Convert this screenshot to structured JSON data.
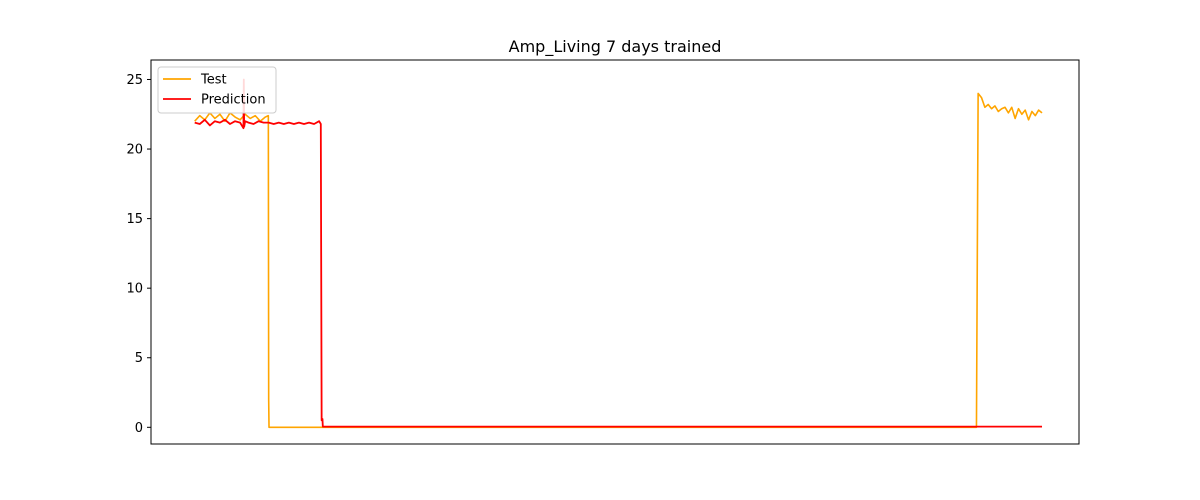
{
  "chart_data": {
    "type": "line",
    "title": "Amp_Living 7 days trained",
    "xlabel": "",
    "ylabel": "",
    "ylim": [
      -1.2,
      26.4
    ],
    "xlim": [
      -2.6,
      52.6
    ],
    "xticks_shown": false,
    "yticks": [
      0,
      5,
      10,
      15,
      20,
      25
    ],
    "ytick_labels": [
      "0",
      "5",
      "10",
      "15",
      "20",
      "25"
    ],
    "grid": false,
    "legend": {
      "position": "top-left",
      "entries": [
        "Test",
        "Prediction"
      ]
    },
    "series": [
      {
        "name": "Test",
        "color": "#FFA500",
        "x": [
          0,
          0.3,
          0.6,
          0.9,
          1.2,
          1.5,
          1.8,
          2.1,
          2.4,
          2.7,
          3.0,
          3.3,
          3.6,
          3.9,
          4.2,
          4.38,
          4.4,
          4.42,
          6,
          10,
          20,
          30,
          40,
          44,
          46.5,
          46.55,
          46.6,
          46.8,
          47.0,
          47.2,
          47.4,
          47.6,
          47.8,
          48.0,
          48.2,
          48.4,
          48.6,
          48.8,
          49.0,
          49.2,
          49.4,
          49.6,
          49.8,
          50.0,
          50.2,
          50.4
        ],
        "y": [
          22.0,
          22.4,
          22.1,
          22.6,
          22.2,
          22.5,
          22.0,
          22.6,
          22.3,
          22.1,
          22.5,
          22.2,
          22.4,
          22.0,
          22.3,
          22.4,
          2.0,
          0,
          0,
          0,
          0,
          0,
          0,
          0,
          0,
          12.0,
          24.0,
          23.7,
          23.0,
          23.2,
          22.9,
          23.1,
          22.7,
          22.9,
          23.0,
          22.6,
          23.0,
          22.2,
          22.9,
          22.5,
          22.8,
          22.1,
          22.7,
          22.4,
          22.8,
          22.6
        ]
      },
      {
        "name": "Prediction",
        "color": "#FF0000",
        "x": [
          0,
          0.3,
          0.6,
          0.9,
          1.2,
          1.5,
          1.8,
          2.1,
          2.4,
          2.7,
          2.9,
          2.92,
          2.94,
          3.0,
          3.2,
          3.5,
          3.8,
          4.1,
          4.4,
          4.7,
          5.0,
          5.3,
          5.6,
          5.9,
          6.2,
          6.5,
          6.8,
          7.1,
          7.4,
          7.5,
          7.55,
          7.6,
          7.62,
          7.65,
          10,
          20,
          30,
          40,
          50.4
        ],
        "y": [
          21.9,
          21.8,
          22.1,
          21.7,
          22.0,
          21.9,
          22.1,
          21.8,
          22.0,
          21.9,
          21.5,
          25.0,
          21.6,
          22.0,
          21.9,
          21.8,
          22.0,
          21.9,
          21.9,
          21.8,
          21.9,
          21.8,
          21.9,
          21.8,
          21.9,
          21.8,
          21.9,
          21.8,
          22.0,
          21.8,
          0.5,
          0.6,
          0.05,
          0.05,
          0.05,
          0.05,
          0.05,
          0.05,
          0.05
        ]
      }
    ]
  }
}
